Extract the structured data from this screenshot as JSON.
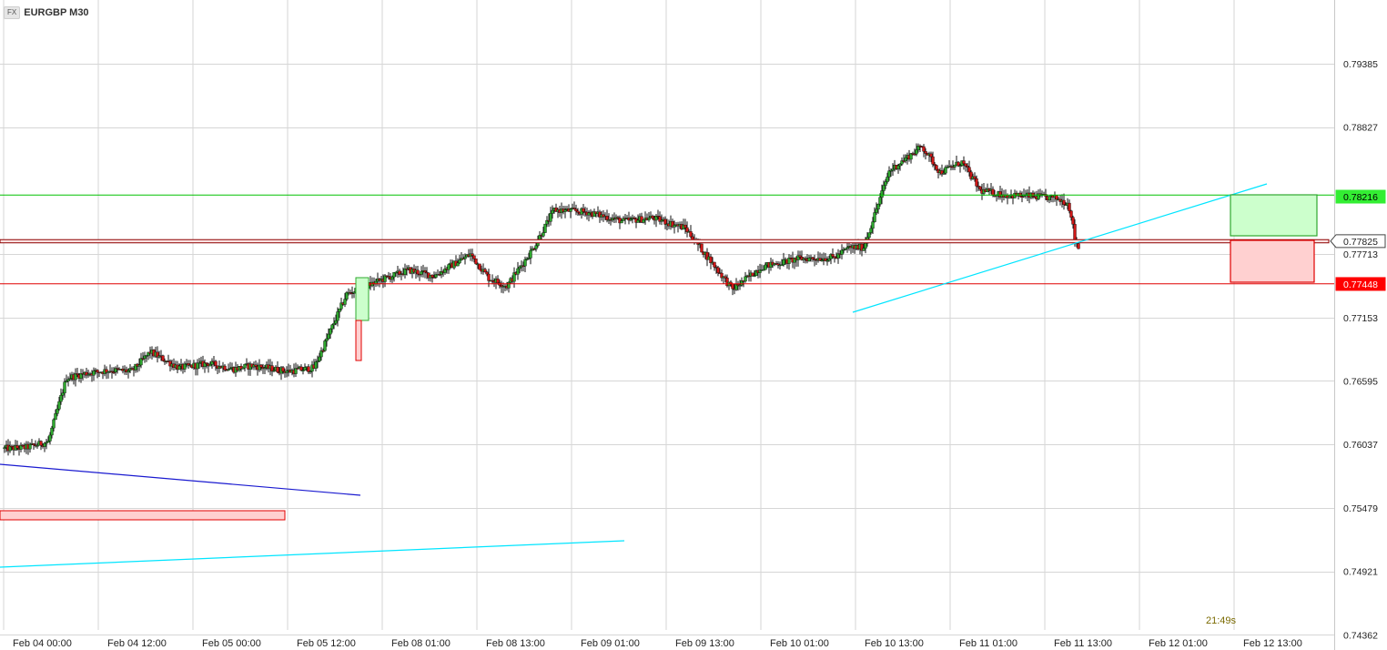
{
  "header": {
    "fx_badge": "FX",
    "symbol": "EURGBP M30"
  },
  "countdown": "21:49s",
  "colors": {
    "up": "#2fa82f",
    "down": "#d01818",
    "wick": "#111111",
    "grid": "#d6d6d6",
    "support_line": "#e00000",
    "resistance_line": "#00c000",
    "trend_cyan": "#00e5ff",
    "trend_blue": "#1a1ad0",
    "tp_zone": "#ccffcc",
    "sl_zone": "#ffd0d0"
  },
  "chart_data": {
    "type": "candlestick",
    "symbol": "EURGBP",
    "timeframe": "M30",
    "y_ticks": [
      "0.79385",
      "0.78827",
      "0.77713",
      "0.77153",
      "0.76595",
      "0.76037",
      "0.75479",
      "0.74921",
      "0.74362"
    ],
    "x_ticks": [
      "Feb 04 00:00",
      "Feb 04 12:00",
      "Feb 05 00:00",
      "Feb 05 12:00",
      "Feb 08 01:00",
      "Feb 08 13:00",
      "Feb 09 01:00",
      "Feb 09 13:00",
      "Feb 10 01:00",
      "Feb 10 13:00",
      "Feb 11 01:00",
      "Feb 11 13:00",
      "Feb 12 01:00",
      "Feb 12 13:00"
    ],
    "price_labels": [
      {
        "label": "0.78216",
        "price": 0.78216,
        "kind": "tp"
      },
      {
        "label": "0.77825",
        "price": 0.77825,
        "kind": "current"
      },
      {
        "label": "0.77448",
        "price": 0.77448,
        "kind": "sl"
      }
    ],
    "price_path": [
      [
        0,
        0.76
      ],
      [
        12,
        0.7601
      ],
      [
        24,
        0.7606
      ],
      [
        34,
        0.7662
      ],
      [
        44,
        0.7666
      ],
      [
        58,
        0.7669
      ],
      [
        70,
        0.7668
      ],
      [
        80,
        0.7685
      ],
      [
        96,
        0.7671
      ],
      [
        112,
        0.7675
      ],
      [
        126,
        0.767
      ],
      [
        136,
        0.7673
      ],
      [
        148,
        0.767
      ],
      [
        156,
        0.7668
      ],
      [
        170,
        0.7671
      ],
      [
        188,
        0.7736
      ],
      [
        208,
        0.7749
      ],
      [
        222,
        0.7757
      ],
      [
        236,
        0.7752
      ],
      [
        256,
        0.7771
      ],
      [
        266,
        0.775
      ],
      [
        276,
        0.7743
      ],
      [
        290,
        0.7775
      ],
      [
        302,
        0.781
      ],
      [
        320,
        0.7808
      ],
      [
        340,
        0.78
      ],
      [
        356,
        0.7803
      ],
      [
        374,
        0.7794
      ],
      [
        386,
        0.7769
      ],
      [
        400,
        0.774
      ],
      [
        416,
        0.776
      ],
      [
        436,
        0.7767
      ],
      [
        456,
        0.7768
      ],
      [
        464,
        0.7777
      ],
      [
        472,
        0.7777
      ],
      [
        486,
        0.7844
      ],
      [
        504,
        0.7866
      ],
      [
        514,
        0.7843
      ],
      [
        526,
        0.7852
      ],
      [
        536,
        0.7827
      ],
      [
        550,
        0.7823
      ],
      [
        564,
        0.7822
      ],
      [
        578,
        0.782
      ],
      [
        584,
        0.7816
      ],
      [
        586,
        0.7806
      ],
      [
        588,
        0.7784
      ],
      [
        590,
        0.7777
      ]
    ],
    "drawings": {
      "resistance_price": 0.7823,
      "support_price": 0.7745,
      "current_band": [
        0.7781,
        0.77838
      ]
    }
  }
}
